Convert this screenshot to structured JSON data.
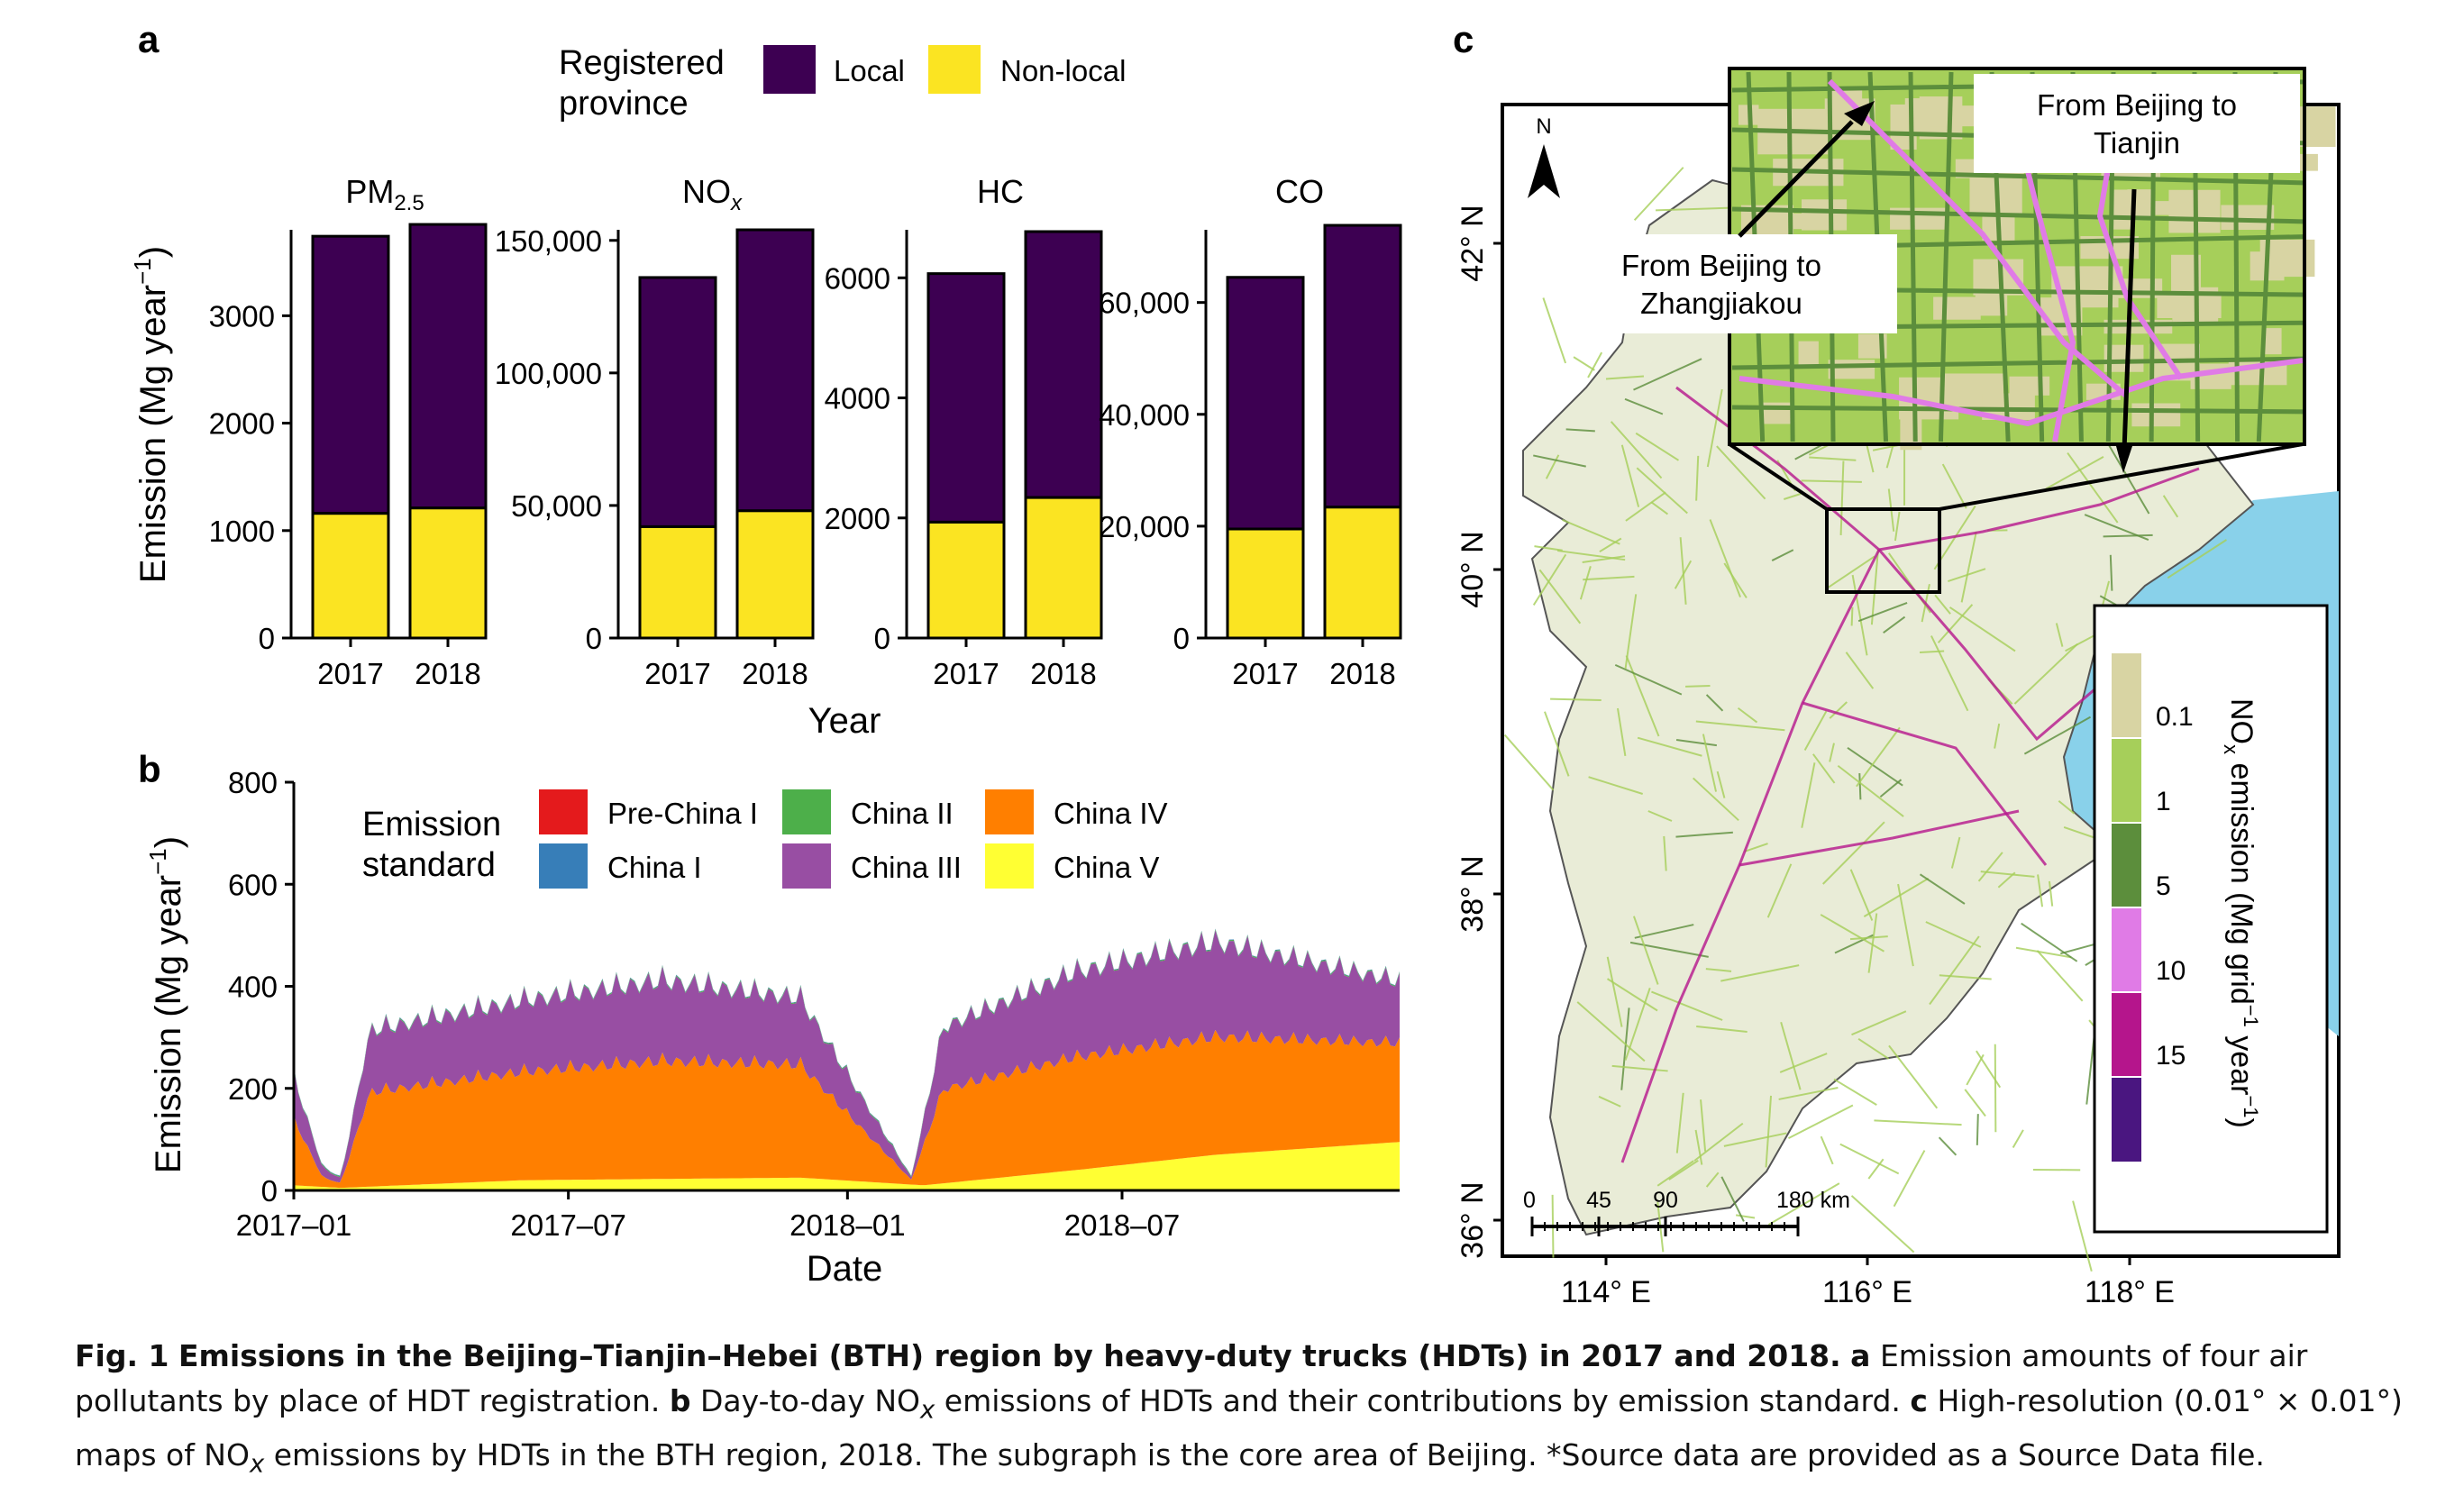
{
  "colors": {
    "local": "#3d0052",
    "non_local": "#fbe422",
    "pre_china_I": "#e41a1c",
    "china_I": "#377eb8",
    "china_II": "#4daf4a",
    "china_III": "#984ea3",
    "china_IV": "#ff7f00",
    "china_V": "#ffff33",
    "sea": "#89d1ea",
    "bin_lt_0_1": "#d8d4a3",
    "bin_0_1_1": "#a6cf5a",
    "bin_1_5": "#5c8e3c",
    "bin_5_10": "#e07be6",
    "bin_10_15": "#b5158c",
    "bin_gt_15": "#4a1680"
  },
  "panel_a": {
    "label": "a",
    "legend": {
      "title_line1": "Registered",
      "title_line2": "province",
      "local": "Local",
      "non_local": "Non-local"
    },
    "x_axis_title": "Year",
    "y_axis_title": "Emission (Mg year",
    "y_axis_sup": "−1",
    "y_axis_close": ")"
  },
  "panel_b": {
    "label": "b",
    "x_axis_title": "Date",
    "y_axis_title": "Emission (Mg year",
    "y_axis_sup": "−1",
    "y_axis_close": ")",
    "legend": {
      "title_line1": "Emission",
      "title_line2": "standard",
      "items": [
        "Pre-China I",
        "China I",
        "China II",
        "China III",
        "China IV",
        "China V"
      ]
    }
  },
  "panel_c": {
    "label": "c",
    "north": "N",
    "lat_labels": [
      "42° N",
      "40° N",
      "38° N",
      "36° N"
    ],
    "lon_labels": [
      "114° E",
      "116° E",
      "118° E"
    ],
    "scale_labels": [
      "0",
      "45",
      "90",
      "180 km"
    ],
    "callout_1_line1": "From Beijing to",
    "callout_1_line2": "Tianjin",
    "callout_2_line1": "From Beijing to",
    "callout_2_line2": "Zhangjiakou",
    "legend_title": "NO",
    "legend_title_sub": "x",
    "legend_title_rest": " emission (Mg grid",
    "legend_title_sup1": "−1",
    "legend_title_mid": " year",
    "legend_title_sup2": "−1",
    "legend_title_close": ")",
    "legend_ticks": [
      "0.1",
      "1",
      "5",
      "10",
      "15"
    ]
  },
  "chart_data": [
    {
      "type": "bar",
      "title": "PM",
      "title_sub": "2.5",
      "categories": [
        "2017",
        "2018"
      ],
      "series": [
        {
          "name": "Local",
          "values": [
            2580,
            2640
          ]
        },
        {
          "name": "Non-local",
          "values": [
            1160,
            1210
          ]
        }
      ],
      "ylim": [
        0,
        3800
      ],
      "yticks": [
        0,
        1000,
        2000,
        3000
      ],
      "ytick_labels": [
        "0",
        "1000",
        "2000",
        "3000"
      ]
    },
    {
      "type": "bar",
      "title": "NO",
      "title_sub": "x",
      "categories": [
        "2017",
        "2018"
      ],
      "series": [
        {
          "name": "Local",
          "values": [
            94000,
            106000
          ]
        },
        {
          "name": "Non-local",
          "values": [
            42000,
            48000
          ]
        }
      ],
      "ylim": [
        0,
        154000
      ],
      "yticks": [
        0,
        50000,
        100000,
        150000
      ],
      "ytick_labels": [
        "0",
        "50,000",
        "100,000",
        "150,000"
      ]
    },
    {
      "type": "bar",
      "title": "HC",
      "title_sub": "",
      "categories": [
        "2017",
        "2018"
      ],
      "series": [
        {
          "name": "Local",
          "values": [
            4140,
            4430
          ]
        },
        {
          "name": "Non-local",
          "values": [
            1930,
            2340
          ]
        }
      ],
      "ylim": [
        0,
        6800
      ],
      "yticks": [
        0,
        2000,
        4000,
        6000
      ],
      "ytick_labels": [
        "0",
        "2000",
        "4000",
        "6000"
      ]
    },
    {
      "type": "bar",
      "title": "CO",
      "title_sub": "",
      "categories": [
        "2017",
        "2018"
      ],
      "series": [
        {
          "name": "Local",
          "values": [
            45000,
            50400
          ]
        },
        {
          "name": "Non-local",
          "values": [
            19500,
            23400
          ]
        }
      ],
      "ylim": [
        0,
        73000
      ],
      "yticks": [
        0,
        20000,
        40000,
        60000
      ],
      "ytick_labels": [
        "0",
        "20,000",
        "40,000",
        "60,000"
      ]
    },
    {
      "type": "area",
      "xlabel": "Date",
      "ylabel": "Emission (Mg year−1)",
      "ylim": [
        0,
        800
      ],
      "yticks": [
        0,
        200,
        400,
        600,
        800
      ],
      "xticks": [
        "2017-01-01",
        "2017-07-01",
        "2018-01-01",
        "2018-07-01"
      ],
      "xtick_labels": [
        "2017–01",
        "2017–07",
        "2018–01",
        "2018–07"
      ],
      "x_range": [
        "2017-01-01",
        "2018-12-31"
      ],
      "series": [
        {
          "name": "China V",
          "x": [
            "2017-01-01",
            "2017-02-01",
            "2017-06-01",
            "2017-12-01",
            "2018-02-20",
            "2018-06-01",
            "2018-09-01",
            "2018-12-31"
          ],
          "values": [
            10,
            5,
            20,
            25,
            10,
            40,
            70,
            95
          ]
        },
        {
          "name": "China IV",
          "x": [
            "2017-01-01",
            "2017-01-20",
            "2017-02-01",
            "2017-02-20",
            "2017-06-01",
            "2017-09-01",
            "2017-12-01",
            "2018-02-12",
            "2018-03-05",
            "2018-06-01",
            "2018-09-01",
            "2018-12-31"
          ],
          "values": [
            140,
            20,
            10,
            200,
            230,
            250,
            240,
            10,
            200,
            240,
            250,
            210
          ]
        },
        {
          "name": "China III",
          "x": [
            "2017-01-01",
            "2017-01-20",
            "2017-02-01",
            "2017-02-20",
            "2017-06-01",
            "2017-09-01",
            "2017-12-01",
            "2018-02-12",
            "2018-03-05",
            "2018-06-01",
            "2018-09-01",
            "2018-12-31"
          ],
          "values": [
            90,
            20,
            10,
            130,
            150,
            170,
            140,
            5,
            130,
            180,
            200,
            130
          ]
        },
        {
          "name": "China II",
          "x": [
            "2017-01-01",
            "2018-12-31"
          ],
          "values": [
            2,
            2
          ]
        },
        {
          "name": "China I",
          "x": [
            "2017-01-01",
            "2018-12-31"
          ],
          "values": [
            1,
            1
          ]
        },
        {
          "name": "Pre-China I",
          "x": [
            "2017-01-01",
            "2018-12-31"
          ],
          "values": [
            0,
            0
          ]
        }
      ]
    }
  ],
  "caption": {
    "label_fig": "Fig. 1",
    "title": "Emissions in the Beijing–Tianjin–Hebei (BTH) region by heavy-duty trucks (HDTs) in 2017 and 2018.",
    "a_label": "a",
    "a_text": "Emission amounts of four air pollutants by place of HDT registration.",
    "b_label": "b",
    "b_text": "Day-to-day NO",
    "b_sub": "x",
    "b_text2": "emissions of HDTs and their contributions by emission standard.",
    "c_label": "c",
    "c_text": "High-resolution (0.01° × 0.01°) maps of NO",
    "c_sub": "x",
    "c_text2": "emissions by HDTs in the BTH region, 2018. The subgraph is the core area of Beijing. *Source data are provided as a Source Data file."
  }
}
